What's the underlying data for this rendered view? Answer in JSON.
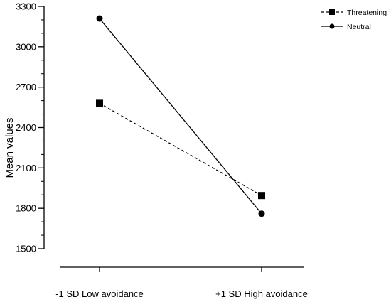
{
  "chart_data": {
    "type": "line",
    "ylabel": "Mean values",
    "xlabel": "",
    "ylim": [
      1500,
      3300
    ],
    "yticks": [
      1500,
      1800,
      2100,
      2400,
      2700,
      3000,
      3300
    ],
    "categories": [
      "-1 SD Low avoidance",
      "+1 SD High avoidance"
    ],
    "legend_position": "top-right",
    "grid": false,
    "series": [
      {
        "name": "Threatening",
        "marker": "square",
        "line": "dashed",
        "values": [
          2580,
          1895
        ]
      },
      {
        "name": "Neutral",
        "marker": "circle",
        "line": "solid",
        "values": [
          3210,
          1760
        ]
      }
    ]
  }
}
